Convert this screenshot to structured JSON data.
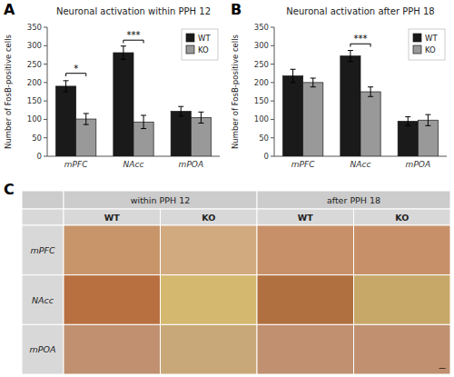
{
  "chart_data": [
    {
      "type": "bar",
      "panel": "A",
      "title": "Neuronal activation within PPH 12",
      "categories": [
        "mPFC",
        "NAcc",
        "mPOA"
      ],
      "series": [
        {
          "name": "WT",
          "color": "#1a1a1a",
          "values": [
            190,
            281,
            122
          ],
          "errors": [
            15,
            18,
            13
          ]
        },
        {
          "name": "KO",
          "color": "#999999",
          "values": [
            101,
            93,
            105
          ],
          "errors": [
            15,
            18,
            15
          ]
        }
      ],
      "significance": [
        {
          "category": "mPFC",
          "label": "*",
          "y": 225,
          "height": 8
        },
        {
          "category": "NAcc",
          "label": "***",
          "y": 315,
          "height": 8
        }
      ],
      "ylabel": "Number of FosB-positive cells",
      "ylim": [
        0,
        350
      ],
      "yticks": [
        0,
        50,
        100,
        150,
        200,
        250,
        300,
        350
      ],
      "grid": false,
      "legend": "upper right"
    },
    {
      "type": "bar",
      "panel": "B",
      "title": "Neuronal activation after PPH 18",
      "categories": [
        "mPFC",
        "NAcc",
        "mPOA"
      ],
      "series": [
        {
          "name": "WT",
          "color": "#1a1a1a",
          "values": [
            218,
            272,
            95
          ],
          "errors": [
            18,
            15,
            12
          ]
        },
        {
          "name": "KO",
          "color": "#999999",
          "values": [
            200,
            175,
            98
          ],
          "errors": [
            12,
            13,
            15
          ]
        }
      ],
      "significance": [
        {
          "category": "NAcc",
          "label": "***",
          "y": 305,
          "height": 8
        }
      ],
      "ylabel": "Number of FosB-positive cells",
      "ylim": [
        0,
        350
      ],
      "yticks": [
        0,
        50,
        100,
        150,
        200,
        250,
        300,
        350
      ],
      "grid": false,
      "legend": "upper right"
    },
    {
      "type": "image_grid",
      "panel": "C",
      "top_headers": [
        "within PPH 12",
        "after PPH 18"
      ],
      "sub_headers": [
        "WT",
        "KO",
        "WT",
        "KO"
      ],
      "row_labels": [
        "mPFC",
        "NAcc",
        "mPOA"
      ],
      "header_color": "#cccccc",
      "subheader_color": "#d8d8d8",
      "rowlabel_color": "#d8d8d8",
      "colors": [
        [
          "#c8956a",
          "#d2aa80",
          "#c89068",
          "#c89068"
        ],
        [
          "#b87040",
          "#d4b870",
          "#b07040",
          "#c8a868"
        ],
        [
          "#c09070",
          "#c8a878",
          "#c09070",
          "#c09070"
        ]
      ],
      "annotation": "—"
    }
  ]
}
